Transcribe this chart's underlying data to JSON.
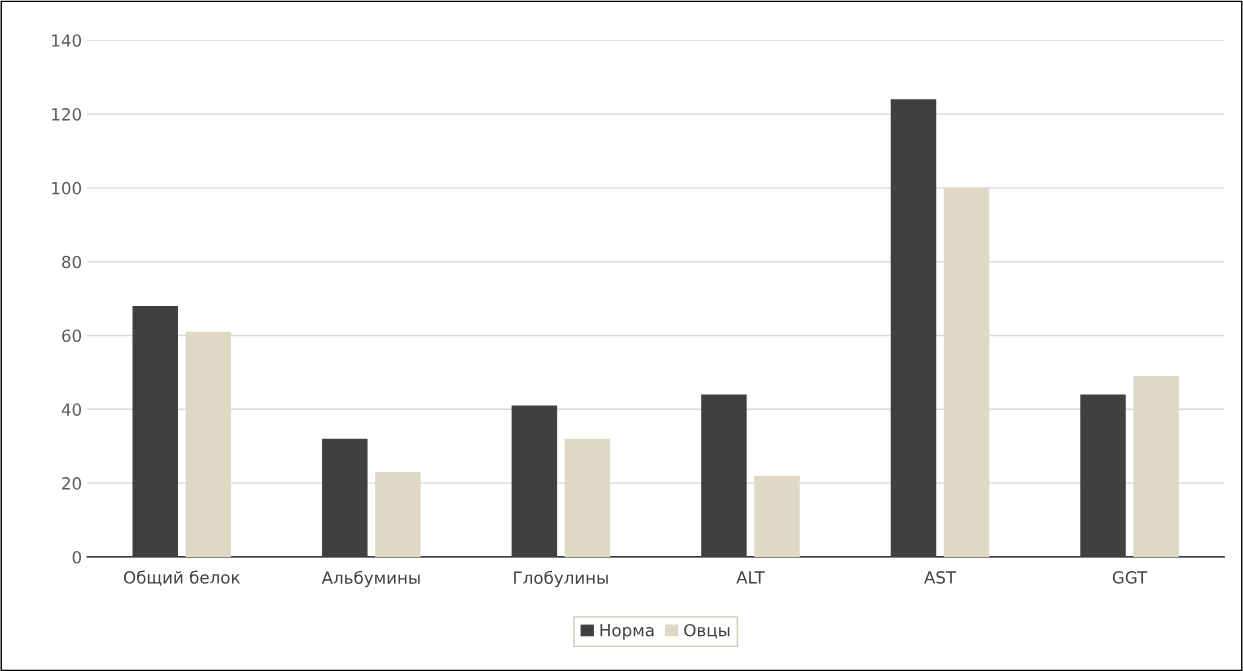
{
  "chart_data": {
    "type": "bar",
    "categories": [
      "Общий белок",
      "Альбумины",
      "Глобулины",
      "ALT",
      "AST",
      "GGT"
    ],
    "series": [
      {
        "name": "Норма",
        "color": "#404040",
        "values": [
          68,
          32,
          41,
          44,
          124,
          44
        ]
      },
      {
        "name": "Овцы",
        "color": "#ddd9c4",
        "values": [
          61,
          23,
          32,
          22,
          100,
          49
        ]
      }
    ],
    "ylim": [
      0,
      140
    ],
    "yticks": [
      0,
      20,
      40,
      60,
      80,
      100,
      120,
      140
    ],
    "grid": "y",
    "legend": "bottom"
  }
}
